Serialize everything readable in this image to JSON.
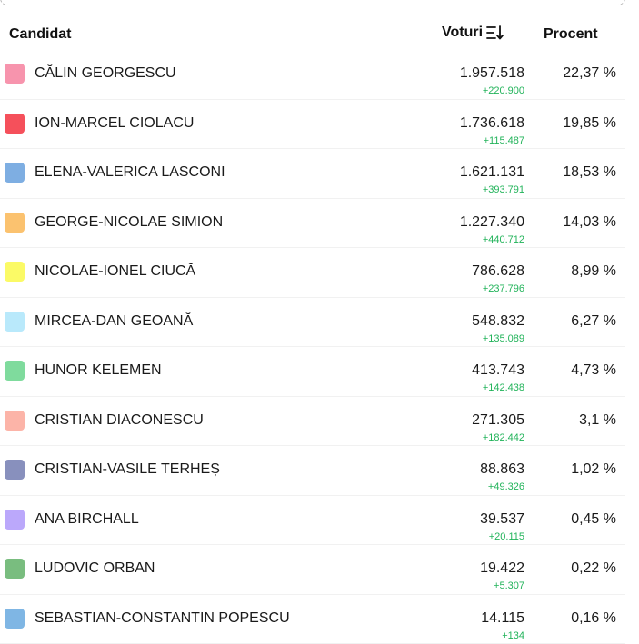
{
  "header": {
    "candidate_label": "Candidat",
    "votes_label": "Voturi",
    "percent_label": "Procent",
    "sort_icon": "sort-descending-icon"
  },
  "candidates": [
    {
      "name": "CĂLIN GEORGESCU",
      "votes": "1.957.518",
      "delta": "+220.900",
      "percent": "22,37 %",
      "color": "#f794ad"
    },
    {
      "name": "ION-MARCEL CIOLACU",
      "votes": "1.736.618",
      "delta": "+115.487",
      "percent": "19,85 %",
      "color": "#f5505b"
    },
    {
      "name": "ELENA-VALERICA LASCONI",
      "votes": "1.621.131",
      "delta": "+393.791",
      "percent": "18,53 %",
      "color": "#7eaee2"
    },
    {
      "name": "GEORGE-NICOLAE SIMION",
      "votes": "1.227.340",
      "delta": "+440.712",
      "percent": "14,03 %",
      "color": "#fbc26f"
    },
    {
      "name": "NICOLAE-IONEL CIUCĂ",
      "votes": "786.628",
      "delta": "+237.796",
      "percent": "8,99 %",
      "color": "#fbfa66"
    },
    {
      "name": "MIRCEA-DAN GEOANĂ",
      "votes": "548.832",
      "delta": "+135.089",
      "percent": "6,27 %",
      "color": "#b9e9fb"
    },
    {
      "name": "HUNOR KELEMEN",
      "votes": "413.743",
      "delta": "+142.438",
      "percent": "4,73 %",
      "color": "#7fdb9d"
    },
    {
      "name": "CRISTIAN DIACONESCU",
      "votes": "271.305",
      "delta": "+182.442",
      "percent": "3,1 %",
      "color": "#fcb4a8"
    },
    {
      "name": "CRISTIAN-VASILE TERHEȘ",
      "votes": "88.863",
      "delta": "+49.326",
      "percent": "1,02 %",
      "color": "#8890bd"
    },
    {
      "name": "ANA BIRCHALL",
      "votes": "39.537",
      "delta": "+20.115",
      "percent": "0,45 %",
      "color": "#bba8fb"
    },
    {
      "name": "LUDOVIC ORBAN",
      "votes": "19.422",
      "delta": "+5.307",
      "percent": "0,22 %",
      "color": "#79bd7f"
    },
    {
      "name": "SEBASTIAN-CONSTANTIN POPESCU",
      "votes": "14.115",
      "delta": "+134",
      "percent": "0,16 %",
      "color": "#7fb6e4"
    }
  ]
}
